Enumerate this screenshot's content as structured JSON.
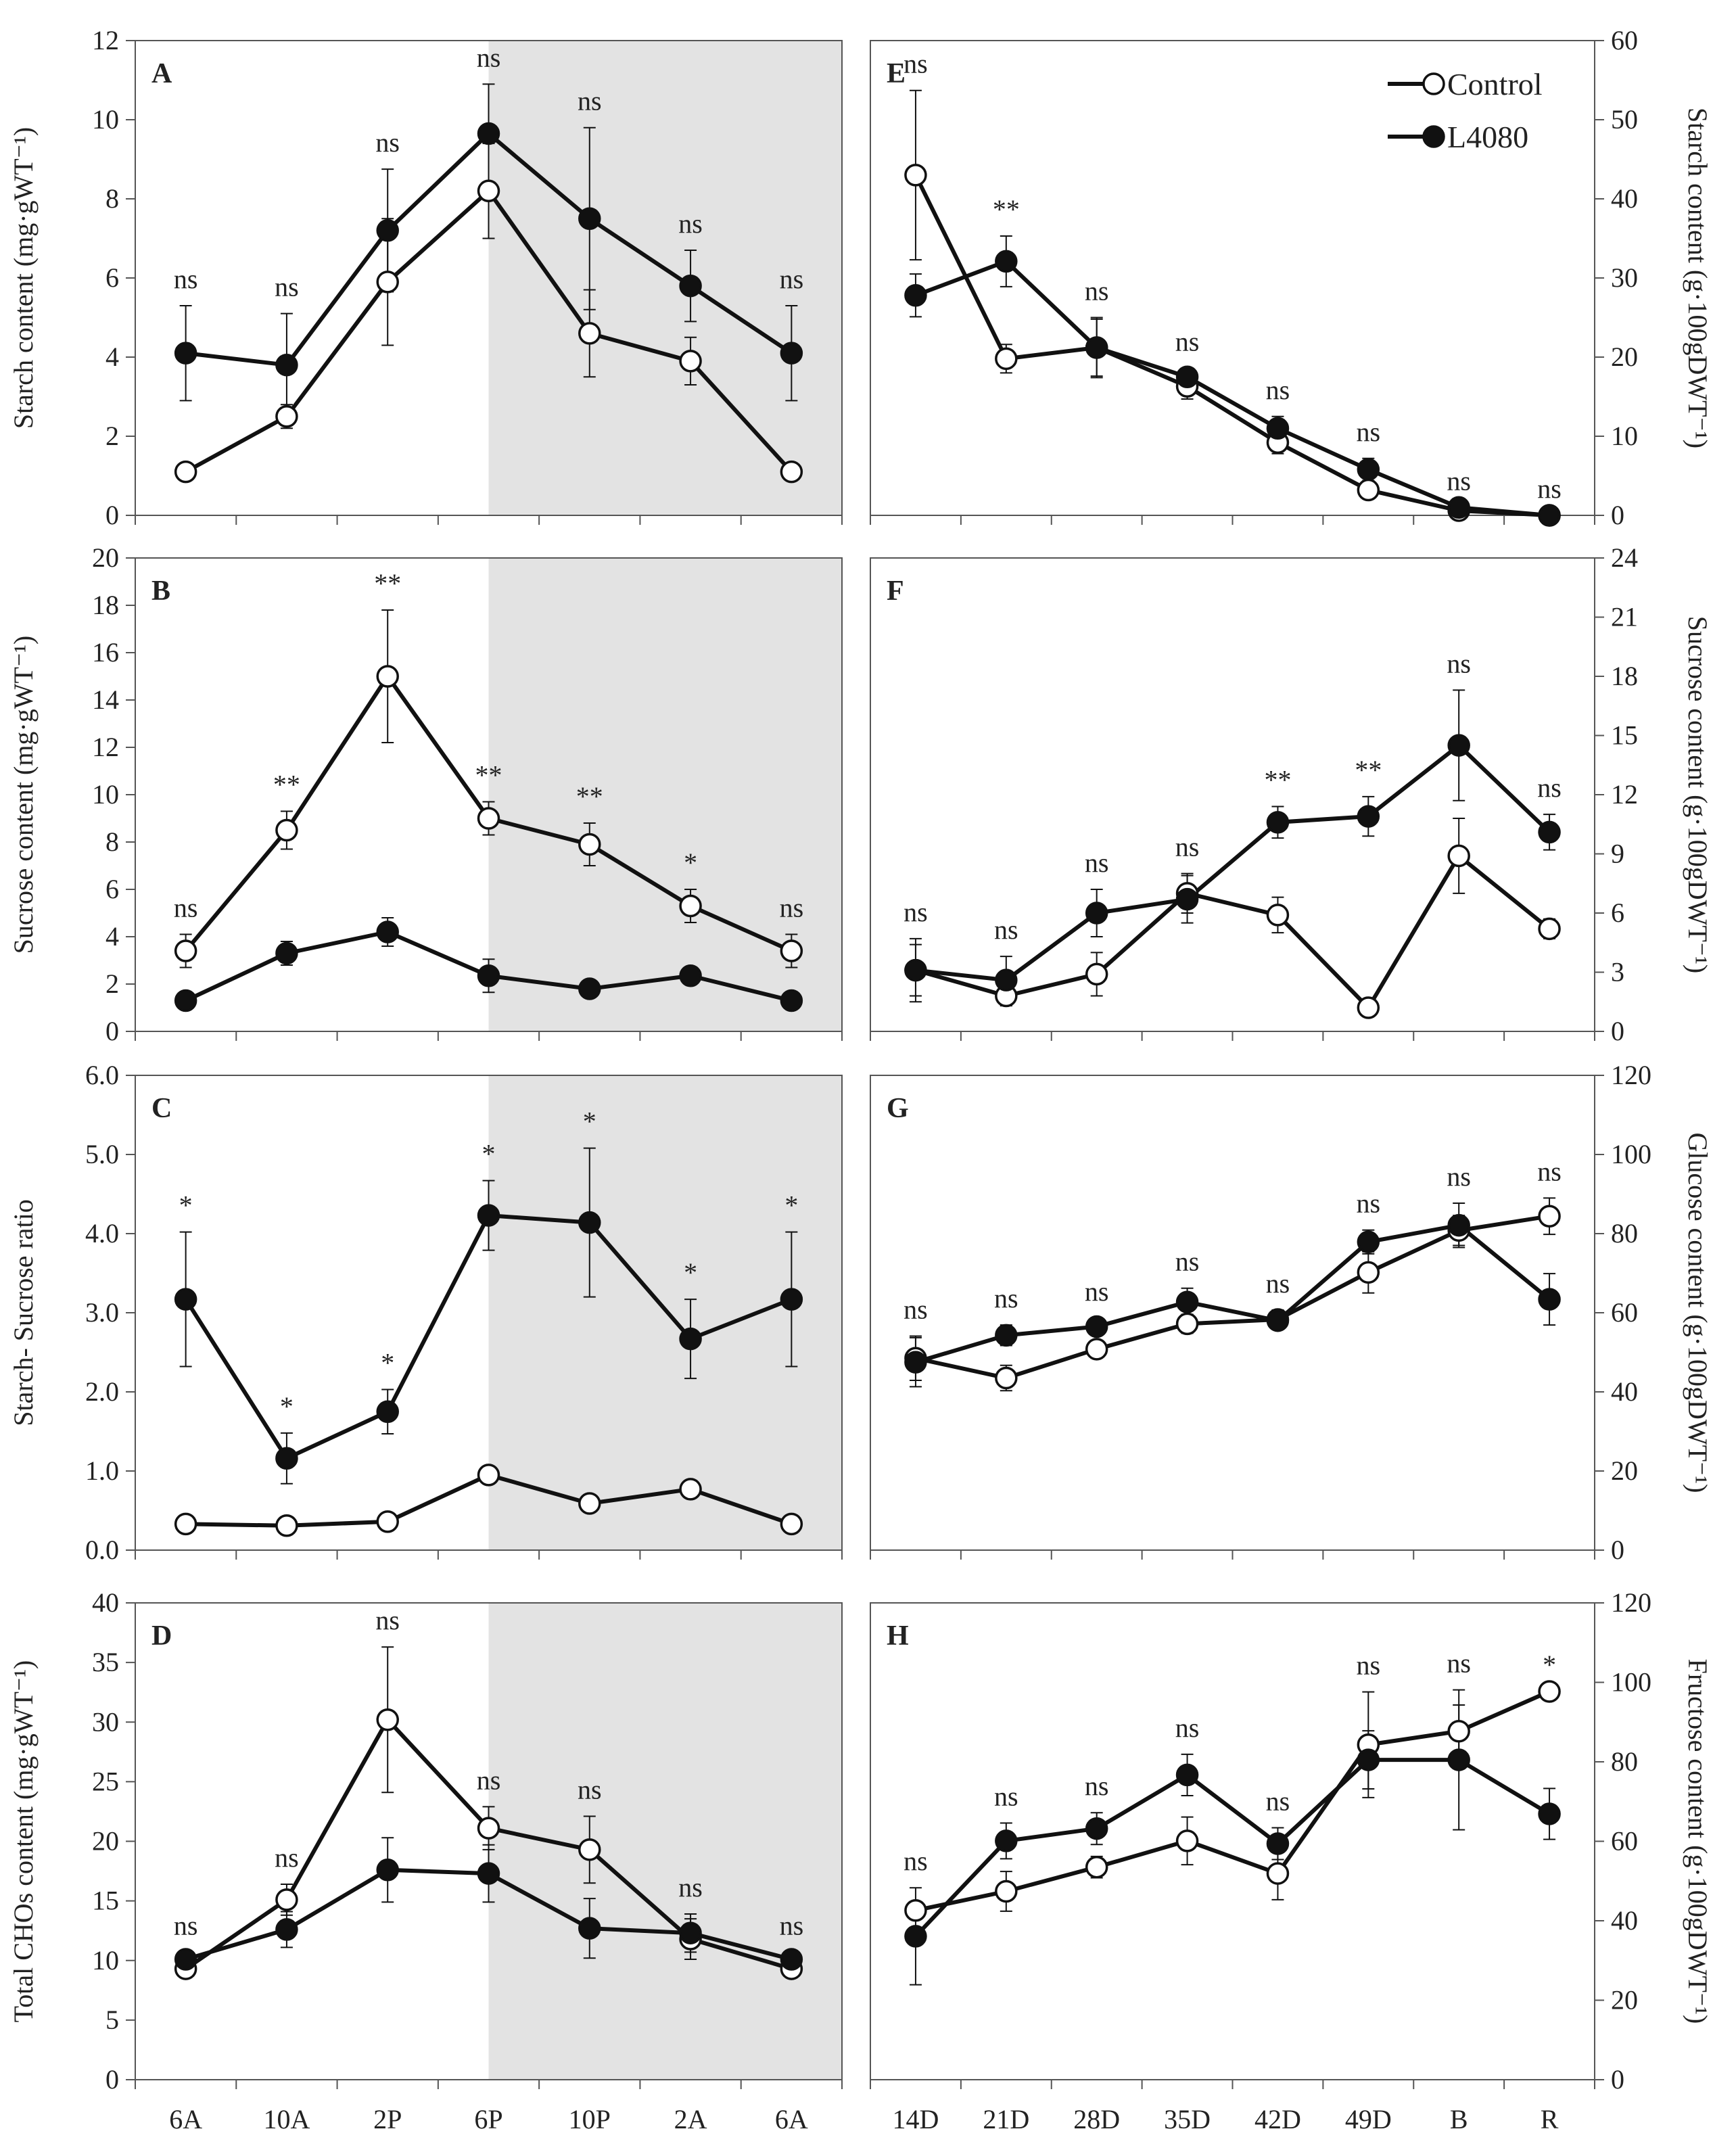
{
  "legend": {
    "control": "Control",
    "treatment": "L4080"
  },
  "colors": {
    "line": "#111111",
    "night_shade": "#e3e3e3",
    "marker_open_fill": "#ffffff",
    "marker_filled": "#111111"
  },
  "chart_data": [
    {
      "panel": "A",
      "type": "line",
      "ylabel": "Starch content (mg·gWT⁻¹)",
      "ylim": [
        0,
        12
      ],
      "yticks": [
        0,
        2,
        4,
        6,
        8,
        10,
        12
      ],
      "ytick_labels": [
        "0",
        "2",
        "4",
        "6",
        "8",
        "10",
        "12"
      ],
      "categories": [
        "6A",
        "10A",
        "2P",
        "6P",
        "10P",
        "2A",
        "6A"
      ],
      "shaded_from_index": 3,
      "series": [
        {
          "name": "Control",
          "values": [
            1.1,
            2.5,
            5.9,
            8.2,
            4.6,
            3.9,
            1.1
          ],
          "errors": [
            0,
            0.3,
            1.6,
            1.2,
            1.1,
            0.6,
            0
          ]
        },
        {
          "name": "L4080",
          "values": [
            4.1,
            3.8,
            7.2,
            9.65,
            7.5,
            5.8,
            4.1
          ],
          "errors": [
            1.2,
            1.3,
            1.55,
            1.25,
            2.3,
            0.9,
            1.2
          ]
        }
      ],
      "significance": [
        "ns",
        "ns",
        "ns",
        "ns",
        "ns",
        "ns",
        "ns"
      ]
    },
    {
      "panel": "B",
      "type": "line",
      "ylabel": "Sucrose content (mg·gWT⁻¹)",
      "ylim": [
        0,
        20
      ],
      "yticks": [
        0,
        2,
        4,
        6,
        8,
        10,
        12,
        14,
        16,
        18,
        20
      ],
      "ytick_labels": [
        "0",
        "2",
        "4",
        "6",
        "8",
        "10",
        "12",
        "14",
        "16",
        "18",
        "20"
      ],
      "categories": [
        "6A",
        "10A",
        "2P",
        "6P",
        "10P",
        "2A",
        "6A"
      ],
      "shaded_from_index": 3,
      "series": [
        {
          "name": "Control",
          "values": [
            3.4,
            8.5,
            15.0,
            9.0,
            7.9,
            5.3,
            3.4
          ],
          "errors": [
            0.7,
            0.8,
            2.8,
            0.7,
            0.9,
            0.7,
            0.7
          ]
        },
        {
          "name": "L4080",
          "values": [
            1.3,
            3.3,
            4.2,
            2.35,
            1.8,
            2.35,
            1.3
          ],
          "errors": [
            0.2,
            0.5,
            0.6,
            0.7,
            0.2,
            0.2,
            0.2
          ]
        }
      ],
      "significance": [
        "ns",
        "**",
        "**",
        "**",
        "**",
        "*",
        "ns"
      ]
    },
    {
      "panel": "C",
      "type": "line",
      "ylabel": "Starch- Sucrose ratio",
      "ylim": [
        0,
        6
      ],
      "yticks": [
        0,
        1,
        2,
        3,
        4,
        5,
        6
      ],
      "ytick_labels": [
        "0.0",
        "1.0",
        "2.0",
        "3.0",
        "4.0",
        "5.0",
        "6.0"
      ],
      "categories": [
        "6A",
        "10A",
        "2P",
        "6P",
        "10P",
        "2A",
        "6A"
      ],
      "shaded_from_index": 3,
      "series": [
        {
          "name": "Control",
          "values": [
            0.33,
            0.31,
            0.36,
            0.95,
            0.59,
            0.77,
            0.33
          ],
          "errors": [
            0,
            0,
            0,
            0.05,
            0.05,
            0,
            0
          ]
        },
        {
          "name": "L4080",
          "values": [
            3.17,
            1.16,
            1.75,
            4.23,
            4.14,
            2.67,
            3.17
          ],
          "errors": [
            0.85,
            0.32,
            0.28,
            0.44,
            0.94,
            0.5,
            0.85
          ]
        }
      ],
      "significance": [
        "*",
        "*",
        "*",
        "*",
        "*",
        "*",
        "*"
      ]
    },
    {
      "panel": "D",
      "type": "line",
      "ylabel": "Total CHOs content (mg·gWT⁻¹)",
      "ylim": [
        0,
        40
      ],
      "yticks": [
        0,
        5,
        10,
        15,
        20,
        25,
        30,
        35,
        40
      ],
      "ytick_labels": [
        "0",
        "5",
        "10",
        "15",
        "20",
        "25",
        "30",
        "35",
        "40"
      ],
      "categories": [
        "6A",
        "10A",
        "2P",
        "6P",
        "10P",
        "2A",
        "6A"
      ],
      "shaded_from_index": 3,
      "series": [
        {
          "name": "Control",
          "values": [
            9.3,
            15.1,
            30.2,
            21.1,
            19.3,
            11.8,
            9.3
          ],
          "errors": [
            0.6,
            1.3,
            6.1,
            1.8,
            2.8,
            1.7,
            0.6
          ]
        },
        {
          "name": "L4080",
          "values": [
            10.1,
            12.6,
            17.6,
            17.3,
            12.7,
            12.3,
            10.1
          ],
          "errors": [
            0.6,
            1.5,
            2.7,
            2.4,
            2.5,
            1.6,
            0.6
          ]
        }
      ],
      "significance": [
        "ns",
        "ns",
        "ns",
        "ns",
        "ns",
        "ns",
        "ns"
      ]
    },
    {
      "panel": "E",
      "type": "line",
      "ylabel": "Starch content (g·100gDWT⁻¹)",
      "ylim": [
        0,
        60
      ],
      "yticks": [
        0,
        10,
        20,
        30,
        40,
        50,
        60
      ],
      "ytick_labels": [
        "0",
        "10",
        "20",
        "30",
        "40",
        "50",
        "60"
      ],
      "categories": [
        "14D",
        "21D",
        "28D",
        "35D",
        "42D",
        "49D",
        "B",
        "R"
      ],
      "series": [
        {
          "name": "Control",
          "values": [
            43,
            19.8,
            21.2,
            16.3,
            9.2,
            3.2,
            0.6,
            0
          ],
          "errors": [
            10.7,
            1.8,
            3.6,
            1.6,
            1.4,
            0,
            0,
            0
          ]
        },
        {
          "name": "L4080",
          "values": [
            27.8,
            32.1,
            21.2,
            17.5,
            11.0,
            5.8,
            1.0,
            0
          ],
          "errors": [
            2.7,
            3.2,
            3.8,
            1.1,
            1.5,
            1.4,
            0,
            0
          ]
        }
      ],
      "significance": [
        "ns",
        "**",
        "ns",
        "ns",
        "ns",
        "ns",
        "ns",
        "ns"
      ]
    },
    {
      "panel": "F",
      "type": "line",
      "ylabel": "Sucrose content (g·100gDWT⁻¹)",
      "ylim": [
        0,
        24
      ],
      "yticks": [
        0,
        3,
        6,
        9,
        12,
        15,
        18,
        21,
        24
      ],
      "ytick_labels": [
        "0",
        "3",
        "6",
        "9",
        "12",
        "15",
        "18",
        "21",
        "24"
      ],
      "categories": [
        "14D",
        "21D",
        "28D",
        "35D",
        "42D",
        "49D",
        "B",
        "R"
      ],
      "series": [
        {
          "name": "Control",
          "values": [
            3.1,
            1.8,
            2.9,
            7.0,
            5.9,
            1.2,
            8.9,
            5.2
          ],
          "errors": [
            1.3,
            0.5,
            1.1,
            1.0,
            0.9,
            0,
            1.9,
            0.5
          ]
        },
        {
          "name": "L4080",
          "values": [
            3.1,
            2.6,
            6.0,
            6.7,
            10.6,
            10.9,
            14.5,
            10.1
          ],
          "errors": [
            1.6,
            1.2,
            1.2,
            1.2,
            0.8,
            1.0,
            2.8,
            0.9
          ]
        }
      ],
      "significance": [
        "ns",
        "ns",
        "ns",
        "ns",
        "**",
        "**",
        "ns",
        "ns"
      ]
    },
    {
      "panel": "G",
      "type": "line",
      "ylabel": "Glucose content (g·100gDWT⁻¹)",
      "ylim": [
        0,
        120
      ],
      "yticks": [
        0,
        20,
        40,
        60,
        80,
        100,
        120
      ],
      "ytick_labels": [
        "0",
        "20",
        "40",
        "60",
        "80",
        "100",
        "120"
      ],
      "categories": [
        "14D",
        "21D",
        "28D",
        "35D",
        "42D",
        "49D",
        "B",
        "R"
      ],
      "series": [
        {
          "name": "Control",
          "values": [
            48.5,
            43.5,
            50.8,
            57.2,
            58.3,
            70.2,
            80.8,
            84.4
          ],
          "errors": [
            5.6,
            3.2,
            1.8,
            2.4,
            2.4,
            5.2,
            3.8,
            4.6
          ]
        },
        {
          "name": "L4080",
          "values": [
            47.5,
            54.3,
            56.5,
            62.7,
            58.0,
            77.9,
            82.1,
            63.4
          ],
          "errors": [
            6.2,
            2.6,
            2.1,
            3.5,
            2.0,
            3.0,
            5.6,
            6.5
          ]
        }
      ],
      "significance": [
        "ns",
        "ns",
        "ns",
        "ns",
        "ns",
        "ns",
        "ns",
        "ns"
      ]
    },
    {
      "panel": "H",
      "type": "line",
      "ylabel": "Fructose content (g·100gDWT⁻¹)",
      "ylim": [
        0,
        120
      ],
      "yticks": [
        0,
        20,
        40,
        60,
        80,
        100,
        120
      ],
      "ytick_labels": [
        "0",
        "20",
        "40",
        "60",
        "80",
        "100",
        "120"
      ],
      "categories": [
        "14D",
        "21D",
        "28D",
        "35D",
        "42D",
        "49D",
        "B",
        "R"
      ],
      "series": [
        {
          "name": "Control",
          "values": [
            42.6,
            47.4,
            53.5,
            60.1,
            51.9,
            84.3,
            87.7,
            97.7
          ],
          "errors": [
            2.1,
            5.0,
            2.7,
            6.0,
            6.6,
            13.3,
            6.6,
            0
          ]
        },
        {
          "name": "L4080",
          "values": [
            36.1,
            60.1,
            63.2,
            76.7,
            59.4,
            80.5,
            80.5,
            66.9
          ],
          "errors": [
            12.2,
            4.5,
            4.0,
            5.2,
            4.0,
            7.3,
            17.6,
            6.4
          ]
        }
      ],
      "significance": [
        "ns",
        "ns",
        "ns",
        "ns",
        "ns",
        "ns",
        "ns",
        "*"
      ]
    }
  ]
}
